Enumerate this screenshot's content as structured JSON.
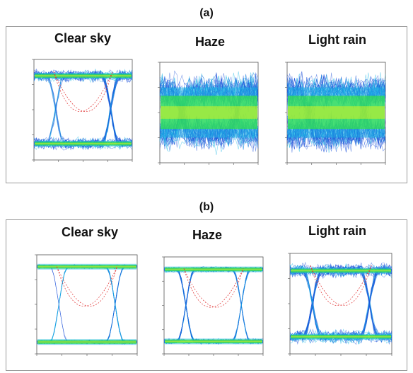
{
  "figure": {
    "panels": [
      {
        "label": "(a)",
        "plots": [
          {
            "title": "Clear sky",
            "opening": 0.75
          },
          {
            "title": "Haze",
            "opening": 0.0
          },
          {
            "title": "Light rain",
            "opening": 0.0
          }
        ]
      },
      {
        "label": "(b)",
        "plots": [
          {
            "title": "Clear sky",
            "opening": 1.0
          },
          {
            "title": "Haze",
            "opening": 0.95
          },
          {
            "title": "Light rain",
            "opening": 0.7
          }
        ]
      }
    ],
    "colors": {
      "trace_blue": "#1a4fd8",
      "trace_cyan": "#19b6e6",
      "trace_green": "#32e04a",
      "trace_yellow": "#d8f020",
      "threshold_red": "#e03030",
      "frame_gray": "#9a9a9a"
    }
  }
}
